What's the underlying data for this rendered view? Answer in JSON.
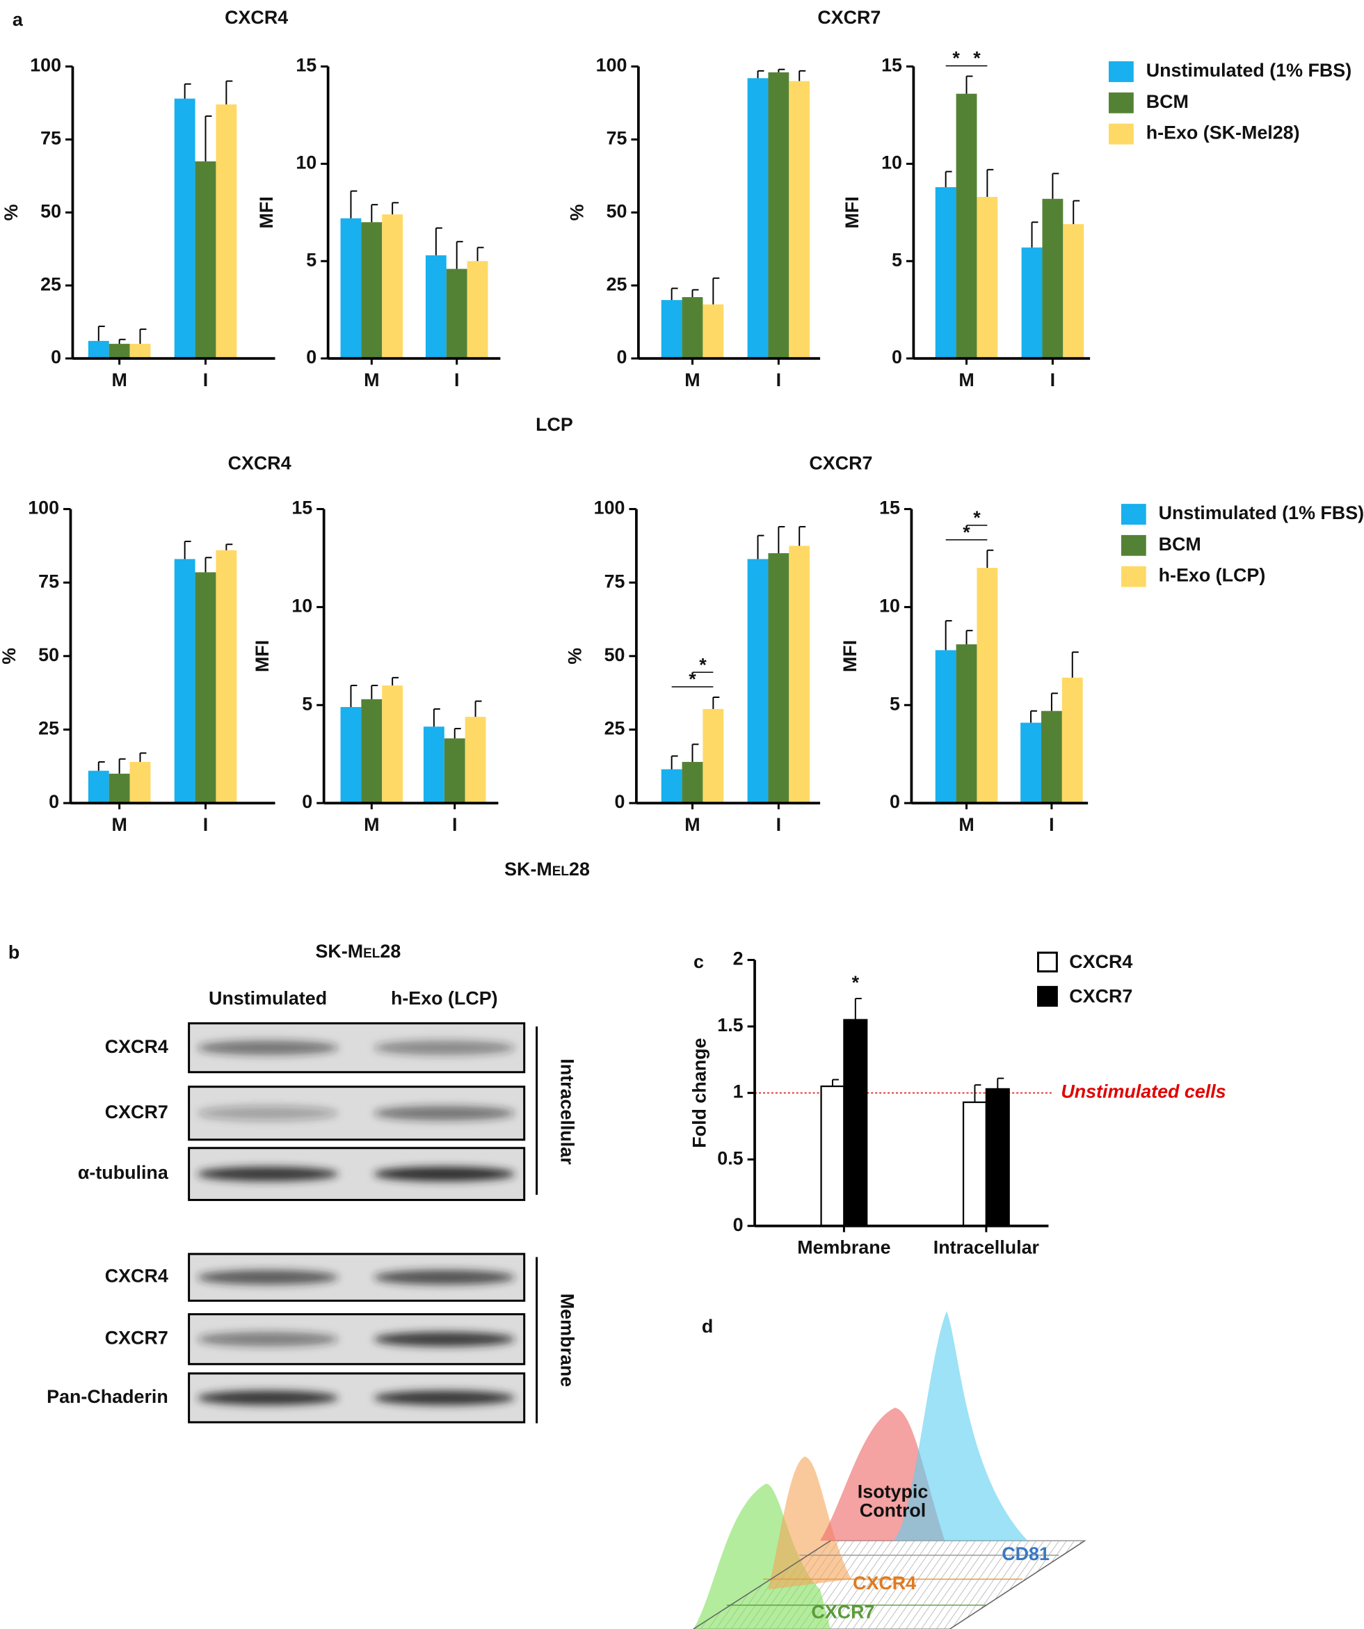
{
  "figure": {
    "panel_labels": [
      "a",
      "b",
      "c",
      "d"
    ],
    "row_labels": [
      "LCP",
      "SK-Mel28"
    ],
    "blot": {
      "title": "SK-Mel28",
      "columns": [
        "Unstimulated",
        "h-Exo (LCP)"
      ],
      "rows": [
        "CXCR4",
        "CXCR7",
        "α-tubulina",
        "CXCR4",
        "CXCR7",
        "Pan-Chaderin"
      ],
      "groups": [
        "Intracellular",
        "Membrane"
      ]
    },
    "flow": {
      "isotype_label": [
        "Isotypic",
        "Control"
      ],
      "labels": [
        "CD81",
        "CXCR4",
        "CXCR7"
      ]
    }
  },
  "chart_data": [
    {
      "type": "bar",
      "title": "CXCR4",
      "ylabel": "%",
      "categories": [
        "M",
        "I"
      ],
      "ylim": [
        0,
        100
      ],
      "yticks": [
        0,
        25,
        50,
        75,
        100
      ],
      "series": [
        {
          "color": "#18b0ee",
          "values": [
            6,
            89
          ],
          "errors": [
            5,
            5
          ]
        },
        {
          "color": "#548235",
          "values": [
            5,
            67.5
          ],
          "errors": [
            1.5,
            15.5
          ]
        },
        {
          "color": "#ffd966",
          "values": [
            5,
            87
          ],
          "errors": [
            5,
            8
          ]
        }
      ]
    },
    {
      "type": "bar",
      "ylabel": "MFI",
      "categories": [
        "M",
        "I"
      ],
      "ylim": [
        0,
        15
      ],
      "yticks": [
        0,
        5,
        10,
        15
      ],
      "series": [
        {
          "color": "#18b0ee",
          "values": [
            7.2,
            5.3
          ],
          "errors": [
            1.4,
            1.4
          ]
        },
        {
          "color": "#548235",
          "values": [
            7.0,
            4.6
          ],
          "errors": [
            0.9,
            1.4
          ]
        },
        {
          "color": "#ffd966",
          "values": [
            7.4,
            5.0
          ],
          "errors": [
            0.6,
            0.7
          ]
        }
      ]
    },
    {
      "type": "bar",
      "title": "CXCR7",
      "ylabel": "%",
      "categories": [
        "M",
        "I"
      ],
      "ylim": [
        0,
        100
      ],
      "yticks": [
        0,
        25,
        50,
        75,
        100
      ],
      "series": [
        {
          "color": "#18b0ee",
          "values": [
            20,
            96
          ],
          "errors": [
            4,
            2.5
          ]
        },
        {
          "color": "#548235",
          "values": [
            21,
            98
          ],
          "errors": [
            2.5,
            1
          ]
        },
        {
          "color": "#ffd966",
          "values": [
            18.5,
            95
          ],
          "errors": [
            9,
            3.5
          ]
        }
      ]
    },
    {
      "type": "bar",
      "ylabel": "MFI",
      "categories": [
        "M",
        "I"
      ],
      "ylim": [
        0,
        15
      ],
      "yticks": [
        0,
        5,
        10,
        15
      ],
      "series": [
        {
          "name": "Unstimulated (1% FBS)",
          "color": "#18b0ee",
          "values": [
            8.8,
            5.7
          ],
          "errors": [
            0.8,
            1.3
          ]
        },
        {
          "name": "BCM",
          "color": "#548235",
          "values": [
            13.6,
            8.2
          ],
          "errors": [
            0.9,
            1.3
          ]
        },
        {
          "name": "h-Exo (SK-Mel28)",
          "color": "#ffd966",
          "values": [
            8.3,
            6.9
          ],
          "errors": [
            1.4,
            1.2
          ]
        }
      ],
      "significance": [
        {
          "category": 0,
          "from": 0,
          "to": 1,
          "label": "*"
        },
        {
          "category": 0,
          "from": 1,
          "to": 2,
          "label": "*"
        }
      ]
    },
    {
      "type": "bar",
      "title": "CXCR4",
      "ylabel": "%",
      "categories": [
        "M",
        "I"
      ],
      "ylim": [
        0,
        100
      ],
      "yticks": [
        0,
        25,
        50,
        75,
        100
      ],
      "series": [
        {
          "color": "#18b0ee",
          "values": [
            11,
            83
          ],
          "errors": [
            3,
            6
          ]
        },
        {
          "color": "#548235",
          "values": [
            10,
            78.5
          ],
          "errors": [
            5,
            5
          ]
        },
        {
          "color": "#ffd966",
          "values": [
            14,
            86
          ],
          "errors": [
            3,
            2
          ]
        }
      ]
    },
    {
      "type": "bar",
      "ylabel": "MFI",
      "categories": [
        "M",
        "I"
      ],
      "ylim": [
        0,
        15
      ],
      "yticks": [
        0,
        5,
        10,
        15
      ],
      "series": [
        {
          "color": "#18b0ee",
          "values": [
            4.9,
            3.9
          ],
          "errors": [
            1.1,
            0.9
          ]
        },
        {
          "color": "#548235",
          "values": [
            5.3,
            3.3
          ],
          "errors": [
            0.7,
            0.5
          ]
        },
        {
          "color": "#ffd966",
          "values": [
            6.0,
            4.4
          ],
          "errors": [
            0.4,
            0.8
          ]
        }
      ]
    },
    {
      "type": "bar",
      "title": "CXCR7",
      "ylabel": "%",
      "categories": [
        "M",
        "I"
      ],
      "ylim": [
        0,
        100
      ],
      "yticks": [
        0,
        25,
        50,
        75,
        100
      ],
      "series": [
        {
          "color": "#18b0ee",
          "values": [
            11.5,
            83
          ],
          "errors": [
            4.5,
            8
          ]
        },
        {
          "color": "#548235",
          "values": [
            14,
            85
          ],
          "errors": [
            6,
            9
          ]
        },
        {
          "color": "#ffd966",
          "values": [
            32,
            87.5
          ],
          "errors": [
            4,
            6.5
          ]
        }
      ],
      "significance": [
        {
          "category": 0,
          "from": 0,
          "to": 2,
          "label": "*"
        },
        {
          "category": 0,
          "from": 1,
          "to": 2,
          "label": "*"
        }
      ]
    },
    {
      "type": "bar",
      "ylabel": "MFI",
      "categories": [
        "M",
        "I"
      ],
      "ylim": [
        0,
        15
      ],
      "yticks": [
        0,
        5,
        10,
        15
      ],
      "series": [
        {
          "name": "Unstimulated (1% FBS)",
          "color": "#18b0ee",
          "values": [
            7.8,
            4.1
          ],
          "errors": [
            1.5,
            0.6
          ]
        },
        {
          "name": "BCM",
          "color": "#548235",
          "values": [
            8.1,
            4.7
          ],
          "errors": [
            0.7,
            0.9
          ]
        },
        {
          "name": "h-Exo (LCP)",
          "color": "#ffd966",
          "values": [
            12,
            6.4
          ],
          "errors": [
            0.9,
            1.3
          ]
        }
      ],
      "significance": [
        {
          "category": 0,
          "from": 0,
          "to": 2,
          "label": "*"
        },
        {
          "category": 0,
          "from": 1,
          "to": 2,
          "label": "*"
        }
      ]
    },
    {
      "type": "bar",
      "ylabel": "Fold change",
      "categories": [
        "Membrane",
        "Intracellular"
      ],
      "ylim": [
        0,
        2
      ],
      "yticks": [
        0,
        0.5,
        1,
        1.5,
        2
      ],
      "series": [
        {
          "name": "CXCR4",
          "color": "#ffffff",
          "values": [
            1.05,
            0.93
          ],
          "errors": [
            0.05,
            0.13
          ]
        },
        {
          "name": "CXCR7",
          "color": "#000000",
          "values": [
            1.55,
            1.03
          ],
          "errors": [
            0.16,
            0.08
          ]
        }
      ],
      "reference_line": {
        "value": 1,
        "label": "Unstimulated cells",
        "color": "#e00000"
      },
      "significance": [
        {
          "category": 0,
          "from": 1,
          "to": 1,
          "label": "*"
        }
      ]
    }
  ]
}
